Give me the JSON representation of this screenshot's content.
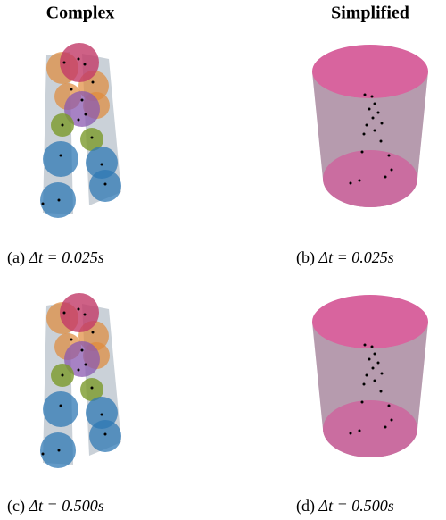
{
  "headers": [
    "Complex",
    "Simplified"
  ],
  "panels": [
    {
      "label": "(a)",
      "caption": "Δt = 0.025s"
    },
    {
      "label": "(b)",
      "caption": "Δt = 0.025s"
    },
    {
      "label": "(c)",
      "caption": "Δt = 0.500s"
    },
    {
      "label": "(d)",
      "caption": "Δt = 0.500s"
    }
  ]
}
